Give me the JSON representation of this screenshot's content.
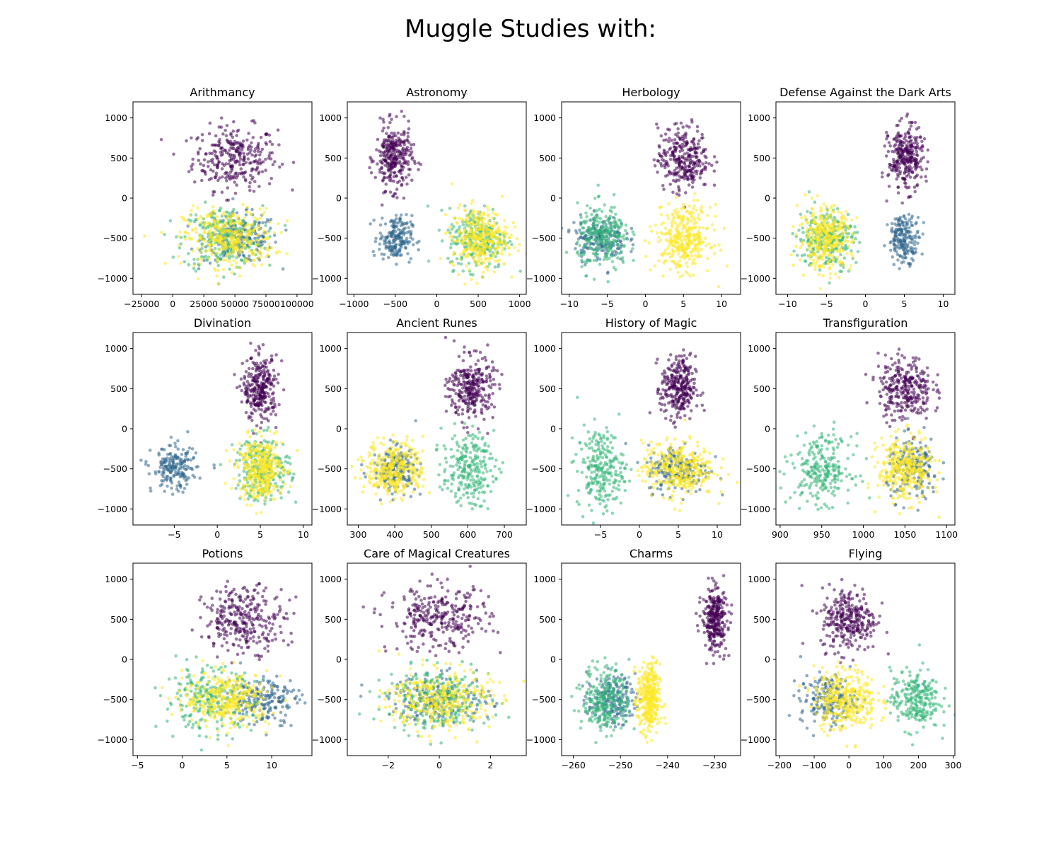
{
  "figure_title": "Muggle Studies with:",
  "colors": {
    "purple": "#440154",
    "blue": "#31688e",
    "green": "#35b779",
    "yellow": "#fde725"
  },
  "chart_data": [
    {
      "type": "scatter",
      "title": "Arithmancy",
      "xlim": [
        -32000,
        112000
      ],
      "ylim": [
        -1200,
        1200
      ],
      "xticks": [
        -25000,
        0,
        25000,
        50000,
        75000,
        100000
      ],
      "xtick_labels": [
        "−25000",
        "0",
        "25000",
        "50000",
        "75000",
        "100000"
      ],
      "yticks": [
        -1000,
        -500,
        0,
        500,
        1000
      ],
      "ytick_labels": [
        "−1000",
        "−500",
        "0",
        "500",
        "1000"
      ],
      "clusters": [
        {
          "color": "purple",
          "cx": 50000,
          "cy": 500,
          "sx": 17000,
          "sy": 200,
          "n": 300
        },
        {
          "color": "blue",
          "cx": 55000,
          "cy": -500,
          "sx": 15000,
          "sy": 150,
          "n": 200
        },
        {
          "color": "green",
          "cx": 40000,
          "cy": -500,
          "sx": 16000,
          "sy": 200,
          "n": 250
        },
        {
          "color": "yellow",
          "cx": 45000,
          "cy": -500,
          "sx": 18000,
          "sy": 180,
          "n": 350
        }
      ]
    },
    {
      "type": "scatter",
      "title": "Astronomy",
      "xlim": [
        -1080,
        1080
      ],
      "ylim": [
        -1200,
        1200
      ],
      "xticks": [
        -1000,
        -500,
        0,
        500,
        1000
      ],
      "xtick_labels": [
        "−1000",
        "−500",
        "0",
        "500",
        "1000"
      ],
      "yticks": [
        -1000,
        -500,
        0,
        500,
        1000
      ],
      "ytick_labels": [
        "−1000",
        "−500",
        "0",
        "500",
        "1000"
      ],
      "clusters": [
        {
          "color": "purple",
          "cx": -520,
          "cy": 500,
          "sx": 110,
          "sy": 200,
          "n": 300
        },
        {
          "color": "blue",
          "cx": -500,
          "cy": -500,
          "sx": 100,
          "sy": 140,
          "n": 200
        },
        {
          "color": "green",
          "cx": 500,
          "cy": -500,
          "sx": 180,
          "sy": 190,
          "n": 250
        },
        {
          "color": "yellow",
          "cx": 520,
          "cy": -500,
          "sx": 170,
          "sy": 190,
          "n": 350
        }
      ]
    },
    {
      "type": "scatter",
      "title": "Herbology",
      "xlim": [
        -11,
        12.5
      ],
      "ylim": [
        -1200,
        1200
      ],
      "xticks": [
        -10,
        -5,
        0,
        5,
        10
      ],
      "xtick_labels": [
        "−10",
        "−5",
        "0",
        "5",
        "10"
      ],
      "yticks": [
        -1000,
        -500,
        0,
        500,
        1000
      ],
      "ytick_labels": [
        "−1000",
        "−500",
        "0",
        "500",
        "1000"
      ],
      "clusters": [
        {
          "color": "purple",
          "cx": 5,
          "cy": 500,
          "sx": 1.7,
          "sy": 200,
          "n": 300
        },
        {
          "color": "blue",
          "cx": -6,
          "cy": -500,
          "sx": 1.7,
          "sy": 140,
          "n": 200
        },
        {
          "color": "green",
          "cx": -5.5,
          "cy": -500,
          "sx": 1.7,
          "sy": 200,
          "n": 250
        },
        {
          "color": "yellow",
          "cx": 5,
          "cy": -500,
          "sx": 1.8,
          "sy": 200,
          "n": 350
        }
      ]
    },
    {
      "type": "scatter",
      "title": "Defense Against the Dark Arts",
      "xlim": [
        -11.5,
        11.5
      ],
      "ylim": [
        -1200,
        1200
      ],
      "xticks": [
        -10,
        -5,
        0,
        5,
        10
      ],
      "xtick_labels": [
        "−10",
        "−5",
        "0",
        "5",
        "10"
      ],
      "yticks": [
        -1000,
        -500,
        0,
        500,
        1000
      ],
      "ytick_labels": [
        "−1000",
        "−500",
        "0",
        "500",
        "1000"
      ],
      "clusters": [
        {
          "color": "purple",
          "cx": 5.2,
          "cy": 500,
          "sx": 1.1,
          "sy": 200,
          "n": 300
        },
        {
          "color": "blue",
          "cx": 5,
          "cy": -500,
          "sx": 1.0,
          "sy": 140,
          "n": 200
        },
        {
          "color": "green",
          "cx": -5,
          "cy": -500,
          "sx": 1.8,
          "sy": 190,
          "n": 250
        },
        {
          "color": "yellow",
          "cx": -5.2,
          "cy": -500,
          "sx": 1.7,
          "sy": 190,
          "n": 350
        }
      ]
    },
    {
      "type": "scatter",
      "title": "Divination",
      "xlim": [
        -9.8,
        11
      ],
      "ylim": [
        -1200,
        1200
      ],
      "xticks": [
        -5,
        0,
        5,
        10
      ],
      "xtick_labels": [
        "−5",
        "0",
        "5",
        "10"
      ],
      "yticks": [
        -1000,
        -500,
        0,
        500,
        1000
      ],
      "ytick_labels": [
        "−1000",
        "−500",
        "0",
        "500",
        "1000"
      ],
      "clusters": [
        {
          "color": "purple",
          "cx": 5,
          "cy": 500,
          "sx": 1.0,
          "sy": 200,
          "n": 300
        },
        {
          "color": "blue",
          "cx": -5,
          "cy": -500,
          "sx": 1.3,
          "sy": 140,
          "n": 200
        },
        {
          "color": "green",
          "cx": 5.3,
          "cy": -500,
          "sx": 1.6,
          "sy": 200,
          "n": 250
        },
        {
          "color": "yellow",
          "cx": 5,
          "cy": -500,
          "sx": 1.3,
          "sy": 190,
          "n": 350
        }
      ]
    },
    {
      "type": "scatter",
      "title": "Ancient Runes",
      "xlim": [
        270,
        760
      ],
      "ylim": [
        -1200,
        1200
      ],
      "xticks": [
        300,
        400,
        500,
        600,
        700
      ],
      "xtick_labels": [
        "300",
        "400",
        "500",
        "600",
        "700"
      ],
      "yticks": [
        -1000,
        -500,
        0,
        500,
        1000
      ],
      "ytick_labels": [
        "−1000",
        "−500",
        "0",
        "500",
        "1000"
      ],
      "clusters": [
        {
          "color": "purple",
          "cx": 610,
          "cy": 500,
          "sx": 30,
          "sy": 200,
          "n": 300
        },
        {
          "color": "blue",
          "cx": 400,
          "cy": -500,
          "sx": 30,
          "sy": 140,
          "n": 200
        },
        {
          "color": "green",
          "cx": 600,
          "cy": -500,
          "sx": 35,
          "sy": 220,
          "n": 250
        },
        {
          "color": "yellow",
          "cx": 400,
          "cy": -500,
          "sx": 40,
          "sy": 170,
          "n": 350
        }
      ]
    },
    {
      "type": "scatter",
      "title": "History of Magic",
      "xlim": [
        -10,
        13
      ],
      "ylim": [
        -1200,
        1200
      ],
      "xticks": [
        -5,
        0,
        5,
        10
      ],
      "xtick_labels": [
        "−5",
        "0",
        "5",
        "10"
      ],
      "yticks": [
        -1000,
        -500,
        0,
        500,
        1000
      ],
      "ytick_labels": [
        "−1000",
        "−500",
        "0",
        "500",
        "1000"
      ],
      "clusters": [
        {
          "color": "purple",
          "cx": 5,
          "cy": 500,
          "sx": 1.1,
          "sy": 200,
          "n": 300
        },
        {
          "color": "blue",
          "cx": 5,
          "cy": -500,
          "sx": 2.0,
          "sy": 150,
          "n": 200
        },
        {
          "color": "green",
          "cx": -5,
          "cy": -500,
          "sx": 1.5,
          "sy": 250,
          "n": 250
        },
        {
          "color": "yellow",
          "cx": 5,
          "cy": -500,
          "sx": 2.3,
          "sy": 170,
          "n": 350
        }
      ]
    },
    {
      "type": "scatter",
      "title": "Transfiguration",
      "xlim": [
        895,
        1110
      ],
      "ylim": [
        -1200,
        1200
      ],
      "xticks": [
        900,
        950,
        1000,
        1050,
        1100
      ],
      "xtick_labels": [
        "900",
        "950",
        "1000",
        "1050",
        "1100"
      ],
      "yticks": [
        -1000,
        -500,
        0,
        500,
        1000
      ],
      "ytick_labels": [
        "−1000",
        "−500",
        "0",
        "500",
        "1000"
      ],
      "clusters": [
        {
          "color": "purple",
          "cx": 1050,
          "cy": 500,
          "sx": 16,
          "sy": 200,
          "n": 300
        },
        {
          "color": "blue",
          "cx": 1060,
          "cy": -500,
          "sx": 16,
          "sy": 190,
          "n": 200
        },
        {
          "color": "green",
          "cx": 950,
          "cy": -500,
          "sx": 18,
          "sy": 210,
          "n": 250
        },
        {
          "color": "yellow",
          "cx": 1050,
          "cy": -500,
          "sx": 16,
          "sy": 200,
          "n": 350
        }
      ]
    },
    {
      "type": "scatter",
      "title": "Potions",
      "xlim": [
        -5.5,
        14.5
      ],
      "ylim": [
        -1200,
        1200
      ],
      "xticks": [
        -5,
        0,
        5,
        10
      ],
      "xtick_labels": [
        "−5",
        "0",
        "5",
        "10"
      ],
      "yticks": [
        -1000,
        -500,
        0,
        500,
        1000
      ],
      "ytick_labels": [
        "−1000",
        "−500",
        "0",
        "500",
        "1000"
      ],
      "clusters": [
        {
          "color": "purple",
          "cx": 7,
          "cy": 500,
          "sx": 2.3,
          "sy": 200,
          "n": 300
        },
        {
          "color": "blue",
          "cx": 9,
          "cy": -500,
          "sx": 2.0,
          "sy": 150,
          "n": 200
        },
        {
          "color": "green",
          "cx": 3,
          "cy": -500,
          "sx": 2.5,
          "sy": 190,
          "n": 250
        },
        {
          "color": "yellow",
          "cx": 5,
          "cy": -500,
          "sx": 2.4,
          "sy": 170,
          "n": 350
        }
      ]
    },
    {
      "type": "scatter",
      "title": "Care of Magical Creatures",
      "xlim": [
        -3.6,
        3.4
      ],
      "ylim": [
        -1200,
        1200
      ],
      "xticks": [
        -2,
        0,
        2
      ],
      "xtick_labels": [
        "−2",
        "0",
        "2"
      ],
      "yticks": [
        -1000,
        -500,
        0,
        500,
        1000
      ],
      "ytick_labels": [
        "−1000",
        "−500",
        "0",
        "500",
        "1000"
      ],
      "clusters": [
        {
          "color": "purple",
          "cx": 0,
          "cy": 500,
          "sx": 1.0,
          "sy": 200,
          "n": 300
        },
        {
          "color": "blue",
          "cx": 0,
          "cy": -500,
          "sx": 1.0,
          "sy": 150,
          "n": 200
        },
        {
          "color": "green",
          "cx": 0,
          "cy": -500,
          "sx": 1.0,
          "sy": 190,
          "n": 250
        },
        {
          "color": "yellow",
          "cx": 0,
          "cy": -500,
          "sx": 1.0,
          "sy": 190,
          "n": 350
        }
      ]
    },
    {
      "type": "scatter",
      "title": "Charms",
      "xlim": [
        -262.5,
        -224.5
      ],
      "ylim": [
        -1200,
        1200
      ],
      "xticks": [
        -260,
        -250,
        -240,
        -230
      ],
      "xtick_labels": [
        "−260",
        "−250",
        "−240",
        "−230"
      ],
      "yticks": [
        -1000,
        -500,
        0,
        500,
        1000
      ],
      "ytick_labels": [
        "−1000",
        "−500",
        "0",
        "500",
        "1000"
      ],
      "clusters": [
        {
          "color": "purple",
          "cx": -230,
          "cy": 500,
          "sx": 1.3,
          "sy": 200,
          "n": 300
        },
        {
          "color": "blue",
          "cx": -252,
          "cy": -500,
          "sx": 2.5,
          "sy": 150,
          "n": 200
        },
        {
          "color": "green",
          "cx": -253,
          "cy": -500,
          "sx": 2.5,
          "sy": 210,
          "n": 250
        },
        {
          "color": "yellow",
          "cx": -244,
          "cy": -500,
          "sx": 1.2,
          "sy": 220,
          "n": 350
        }
      ]
    },
    {
      "type": "scatter",
      "title": "Flying",
      "xlim": [
        -210,
        305
      ],
      "ylim": [
        -1200,
        1200
      ],
      "xticks": [
        -200,
        -100,
        0,
        100,
        200,
        300
      ],
      "xtick_labels": [
        "−200",
        "−100",
        "0",
        "100",
        "200",
        "300"
      ],
      "yticks": [
        -1000,
        -500,
        0,
        500,
        1000
      ],
      "ytick_labels": [
        "−1000",
        "−500",
        "0",
        "500",
        "1000"
      ],
      "clusters": [
        {
          "color": "purple",
          "cx": 0,
          "cy": 500,
          "sx": 40,
          "sy": 200,
          "n": 300
        },
        {
          "color": "blue",
          "cx": -60,
          "cy": -500,
          "sx": 40,
          "sy": 150,
          "n": 200
        },
        {
          "color": "green",
          "cx": 190,
          "cy": -500,
          "sx": 35,
          "sy": 190,
          "n": 250
        },
        {
          "color": "yellow",
          "cx": -10,
          "cy": -500,
          "sx": 45,
          "sy": 190,
          "n": 350
        }
      ]
    }
  ]
}
